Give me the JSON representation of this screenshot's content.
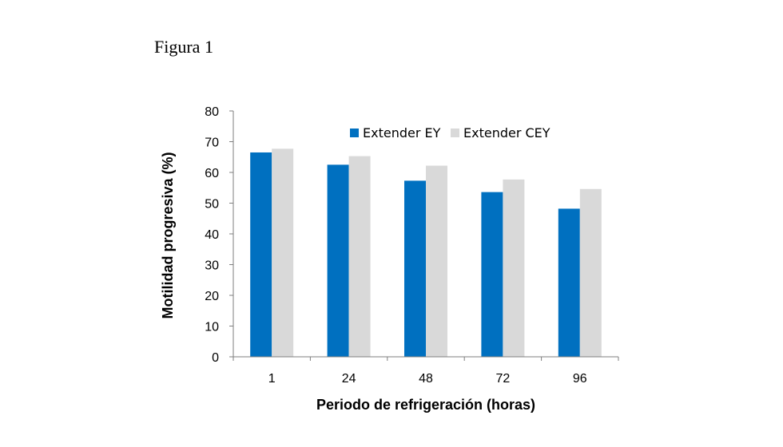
{
  "figure_label": "Figura 1",
  "colors": {
    "series1": "#0070C0",
    "series2": "#D9D9D9",
    "axis": "#7f7f7f"
  },
  "chart_data": {
    "type": "bar",
    "categories": [
      "1",
      "24",
      "48",
      "72",
      "96"
    ],
    "series": [
      {
        "name": "Extender EY",
        "values": [
          66.5,
          62.5,
          57.3,
          53.6,
          48.2
        ]
      },
      {
        "name": "Extender CEY",
        "values": [
          67.7,
          65.3,
          62.2,
          57.7,
          54.6
        ]
      }
    ],
    "xlabel": "Periodo de refrigeración (horas)",
    "ylabel": "Motilidad progresiva (%)",
    "ylim": [
      0,
      80
    ],
    "yticks": [
      0,
      10,
      20,
      30,
      40,
      50,
      60,
      70,
      80
    ],
    "grid": false,
    "legend": "top"
  }
}
